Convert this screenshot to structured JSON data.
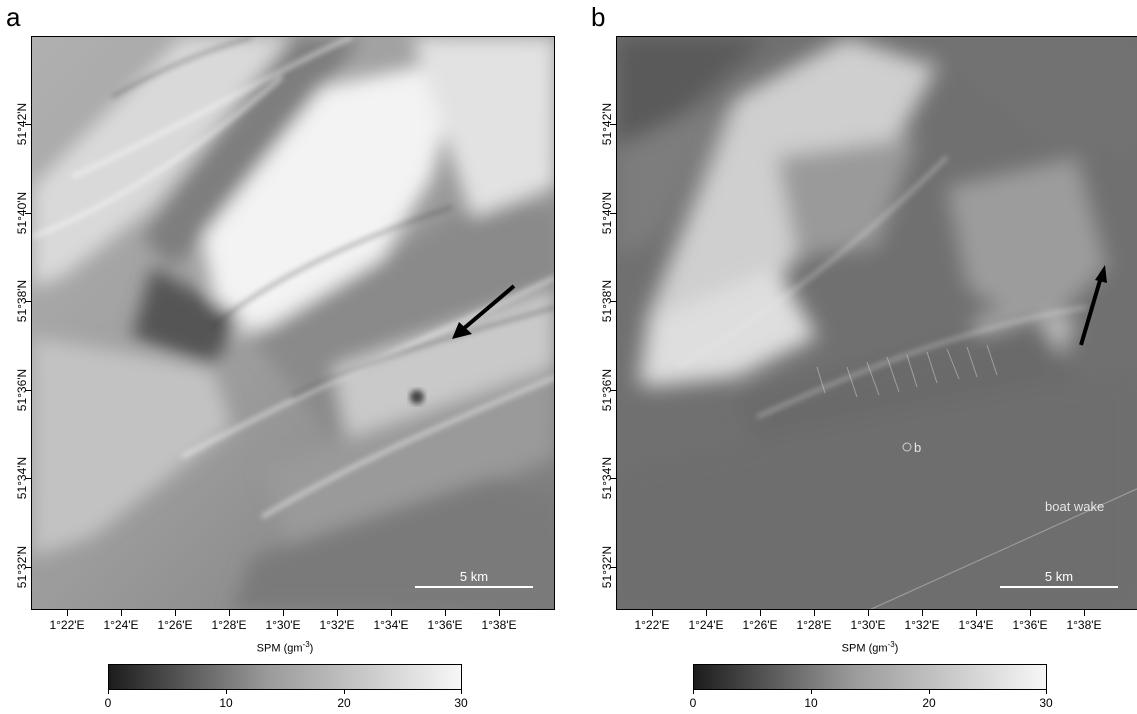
{
  "figure": {
    "panels": [
      {
        "letter": "a",
        "x_ticks": [
          "1°22'E",
          "1°24'E",
          "1°26'E",
          "1°28'E",
          "1°30'E",
          "1°32'E",
          "1°34'E",
          "1°36'E",
          "1°38'E"
        ],
        "y_ticks": [
          "51°32'N",
          "51°34'N",
          "51°36'N",
          "51°38'N",
          "51°40'N",
          "51°42'N"
        ],
        "axis_title": "SPM (gm",
        "axis_title_sup": "-3",
        "axis_title_end": ")",
        "scale_bar": "5 km",
        "colorbar": {
          "min": 0,
          "max": 30,
          "tick_labels": [
            "0",
            "10",
            "20",
            "30"
          ]
        },
        "arrow_direction": "southwest"
      },
      {
        "letter": "b",
        "x_ticks": [
          "1°22'E",
          "1°24'E",
          "1°26'E",
          "1°28'E",
          "1°30'E",
          "1°32'E",
          "1°34'E",
          "1°36'E",
          "1°38'E"
        ],
        "y_ticks": [
          "51°32'N",
          "51°34'N",
          "51°36'N",
          "51°38'N",
          "51°40'N",
          "51°42'N"
        ],
        "axis_title": "SPM (gm",
        "axis_title_sup": "-3",
        "axis_title_end": ")",
        "scale_bar": "5 km",
        "colorbar": {
          "min": 0,
          "max": 30,
          "tick_labels": [
            "0",
            "10",
            "20",
            "30"
          ]
        },
        "arrow_direction": "north-northeast",
        "annotations": {
          "point_label": "b",
          "boat_wake": "boat wake"
        }
      }
    ]
  }
}
